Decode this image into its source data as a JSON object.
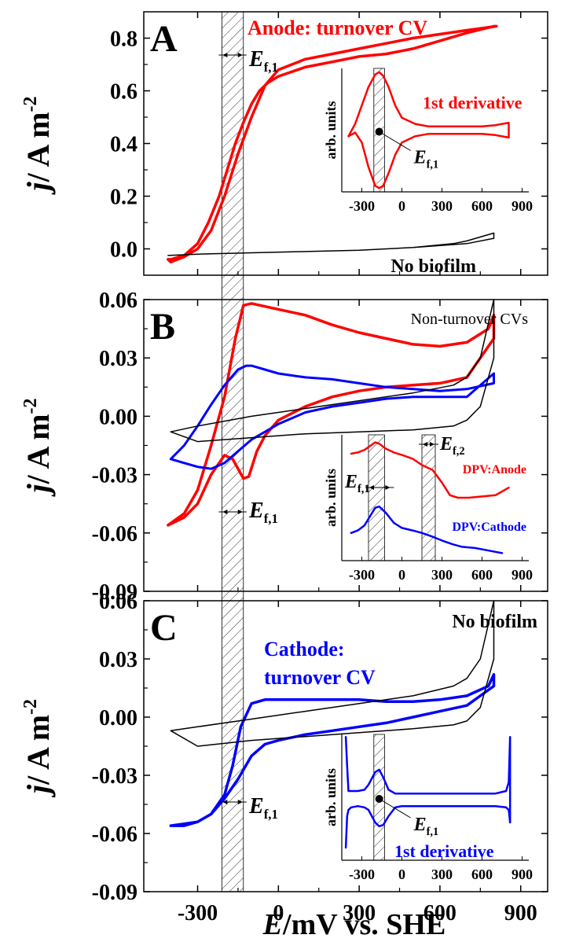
{
  "chart_data": {
    "type": "line",
    "xlabel_italic": "E",
    "xlabel_rest": "/mV vs. SHE",
    "ylabel_italic": "j",
    "ylabel_rest": "/ A m",
    "ylabel_sup": "-2",
    "xlim": [
      -500,
      1000
    ],
    "xticks": [
      "-300",
      "0",
      "300",
      "600",
      "900"
    ],
    "shaded_band": [
      -210,
      -130
    ],
    "panels": [
      {
        "letter": "A",
        "ylim": [
          -0.1,
          0.9
        ],
        "yticks": [
          "0.0",
          "0.2",
          "0.4",
          "0.6",
          "0.8"
        ],
        "annotations": [
          {
            "text": "Anode: turnover CV",
            "color": "#ff0000"
          },
          {
            "text": "No biofilm",
            "color": "#000000"
          }
        ],
        "ef_label": {
          "main": "E",
          "sub": "f,1"
        },
        "series": [
          {
            "color": "#ff0000",
            "width": 3.5,
            "x": [
              -410,
              -400,
              -350,
              -300,
              -260,
              -220,
              -190,
              -160,
              -130,
              -100,
              -70,
              -40,
              0,
              100,
              200,
              300,
              400,
              500,
              600,
              700,
              800,
              810,
              700,
              600,
              500,
              400,
              300,
              200,
              100,
              0,
              -50,
              -100,
              -150,
              -200,
              -250,
              -300,
              -350,
              -400,
              -410
            ],
            "y": [
              -0.04,
              -0.04,
              -0.025,
              0.02,
              0.1,
              0.2,
              0.3,
              0.4,
              0.48,
              0.55,
              0.6,
              0.63,
              0.655,
              0.69,
              0.71,
              0.73,
              0.74,
              0.76,
              0.79,
              0.82,
              0.845,
              0.845,
              0.83,
              0.815,
              0.8,
              0.78,
              0.76,
              0.74,
              0.72,
              0.68,
              0.62,
              0.5,
              0.36,
              0.2,
              0.07,
              0.0,
              -0.03,
              -0.05,
              -0.04
            ]
          },
          {
            "color": "#000000",
            "width": 1.5,
            "x": [
              -410,
              -300,
              -100,
              100,
              300,
              500,
              650,
              700,
              800,
              800,
              700,
              500,
              300,
              100,
              -100,
              -300,
              -410
            ],
            "y": [
              -0.025,
              -0.02,
              -0.015,
              -0.01,
              -0.005,
              0.005,
              0.02,
              0.03,
              0.06,
              0.04,
              0.02,
              0.005,
              -0.005,
              -0.01,
              -0.015,
              -0.02,
              -0.025
            ]
          }
        ],
        "inset": {
          "xlim": [
            -450,
            950
          ],
          "xticks": [
            "-300",
            "0",
            "300",
            "600",
            "900"
          ],
          "ylabel": "arb. units",
          "band": [
            -210,
            -130
          ],
          "label": {
            "text": "1st derivative",
            "color": "#ff0000"
          },
          "ef_label": {
            "main": "E",
            "sub": "f,1"
          },
          "dot_x": -170,
          "series": [
            {
              "color": "#ff0000",
              "width": 2.5,
              "x": [
                -400,
                -350,
                -300,
                -250,
                -200,
                -170,
                -140,
                -100,
                -50,
                0,
                100,
                200,
                400,
                600,
                700,
                800,
                800,
                700,
                600,
                400,
                200,
                100,
                0,
                -50,
                -100,
                -140,
                -170,
                -200,
                -250,
                -300,
                -350,
                -400
              ],
              "y": [
                0.45,
                0.55,
                0.7,
                0.85,
                0.95,
                0.97,
                0.94,
                0.85,
                0.7,
                0.6,
                0.55,
                0.53,
                0.53,
                0.53,
                0.54,
                0.56,
                0.44,
                0.46,
                0.47,
                0.47,
                0.47,
                0.45,
                0.4,
                0.3,
                0.15,
                0.05,
                0.03,
                0.05,
                0.2,
                0.4,
                0.48,
                0.45
              ]
            }
          ]
        }
      },
      {
        "letter": "B",
        "ylim": [
          -0.09,
          0.06
        ],
        "yticks": [
          "-0.09",
          "-0.06",
          "-0.03",
          "0.00",
          "0.03",
          "0.06"
        ],
        "annotations": [
          {
            "text": "Non-turnover CVs",
            "color": "#000000"
          }
        ],
        "ef_label": {
          "main": "E",
          "sub": "f,1"
        },
        "series": [
          {
            "color": "#ff0000",
            "width": 3.5,
            "x": [
              -410,
              -400,
              -350,
              -300,
              -250,
              -200,
              -160,
              -130,
              -100,
              0,
              100,
              200,
              300,
              400,
              500,
              600,
              700,
              780,
              800,
              800,
              700,
              600,
              500,
              400,
              300,
              200,
              100,
              0,
              -50,
              -80,
              -110,
              -130,
              -170,
              -200,
              -250,
              -300,
              -350,
              -410
            ],
            "y": [
              -0.056,
              -0.055,
              -0.05,
              -0.038,
              -0.015,
              0.01,
              0.04,
              0.057,
              0.058,
              0.055,
              0.052,
              0.047,
              0.043,
              0.04,
              0.037,
              0.036,
              0.038,
              0.045,
              0.052,
              0.04,
              0.02,
              0.017,
              0.016,
              0.015,
              0.013,
              0.01,
              0.005,
              -0.002,
              -0.01,
              -0.018,
              -0.031,
              -0.032,
              -0.022,
              -0.02,
              -0.03,
              -0.045,
              -0.052,
              -0.056
            ]
          },
          {
            "color": "#0000ff",
            "width": 3,
            "x": [
              -400,
              -350,
              -300,
              -250,
              -200,
              -150,
              -120,
              -100,
              -50,
              0,
              100,
              200,
              300,
              400,
              500,
              600,
              700,
              800,
              800,
              700,
              600,
              500,
              400,
              300,
              200,
              100,
              0,
              -100,
              -150,
              -200,
              -250,
              -300,
              -350,
              -400
            ],
            "y": [
              -0.022,
              -0.015,
              -0.005,
              0.006,
              0.016,
              0.024,
              0.026,
              0.026,
              0.024,
              0.022,
              0.02,
              0.019,
              0.017,
              0.015,
              0.014,
              0.013,
              0.014,
              0.017,
              0.022,
              0.01,
              0.01,
              0.01,
              0.009,
              0.007,
              0.005,
              0.002,
              -0.004,
              -0.012,
              -0.018,
              -0.024,
              -0.027,
              -0.026,
              -0.024,
              -0.022
            ]
          },
          {
            "color": "#000000",
            "width": 1.5,
            "x": [
              -400,
              -300,
              -100,
              100,
              300,
              500,
              650,
              700,
              750,
              800,
              800,
              750,
              700,
              650,
              500,
              300,
              100,
              -100,
              -300,
              -400
            ],
            "y": [
              -0.008,
              -0.005,
              0.0,
              0.004,
              0.008,
              0.012,
              0.016,
              0.02,
              0.03,
              0.06,
              0.03,
              0.005,
              -0.002,
              -0.005,
              -0.007,
              -0.008,
              -0.009,
              -0.011,
              -0.013,
              -0.008
            ]
          }
        ],
        "inset": {
          "xlim": [
            -450,
            950
          ],
          "xticks": [
            "-300",
            "0",
            "300",
            "600",
            "900"
          ],
          "ylabel": "arb. units",
          "bands": [
            [
              -250,
              -130
            ],
            [
              150,
              250
            ]
          ],
          "ef_label": {
            "main": "E",
            "sub": "f,1"
          },
          "ef2_label": {
            "main": "E",
            "sub": "f,2"
          },
          "series_labels": [
            {
              "text": "DPV:Anode",
              "color": "#ff0000"
            },
            {
              "text": "DPV:Cathode",
              "color": "#0000ff"
            }
          ],
          "series": [
            {
              "color": "#ff0000",
              "width": 2.5,
              "x": [
                -380,
                -330,
                -280,
                -240,
                -200,
                -170,
                -120,
                -60,
                0,
                80,
                150,
                230,
                300,
                360,
                420,
                500,
                600,
                700,
                800
              ],
              "y": [
                0.85,
                0.86,
                0.88,
                0.91,
                0.94,
                0.93,
                0.89,
                0.86,
                0.84,
                0.81,
                0.76,
                0.72,
                0.62,
                0.52,
                0.5,
                0.5,
                0.51,
                0.52,
                0.58
              ]
            },
            {
              "color": "#0000ff",
              "width": 2.5,
              "x": [
                -380,
                -330,
                -280,
                -240,
                -200,
                -170,
                -120,
                -60,
                0,
                80,
                150,
                230,
                300,
                380,
                450,
                550,
                650,
                750
              ],
              "y": [
                0.22,
                0.24,
                0.28,
                0.35,
                0.42,
                0.43,
                0.38,
                0.3,
                0.26,
                0.24,
                0.22,
                0.19,
                0.16,
                0.13,
                0.11,
                0.1,
                0.08,
                0.06
              ]
            }
          ]
        }
      },
      {
        "letter": "C",
        "ylim": [
          -0.09,
          0.06
        ],
        "yticks": [
          "-0.09",
          "-0.06",
          "-0.03",
          "0.00",
          "0.03",
          "0.06"
        ],
        "annotations": [
          {
            "text": "No biofilm",
            "color": "#000000"
          },
          {
            "text": "Cathode:",
            "color": "#0000ff"
          },
          {
            "text": "turnover CV",
            "color": "#0000ff"
          }
        ],
        "ef_label": {
          "main": "E",
          "sub": "f,1"
        },
        "series": [
          {
            "color": "#0000ff",
            "width": 3.5,
            "x": [
              -400,
              -350,
              -300,
              -250,
              -200,
              -170,
              -140,
              -100,
              -50,
              0,
              100,
              200,
              300,
              400,
              500,
              600,
              700,
              780,
              800,
              800,
              700,
              600,
              500,
              400,
              300,
              200,
              100,
              0,
              -50,
              -100,
              -150,
              -200,
              -250,
              -300,
              -350,
              -400
            ],
            "y": [
              -0.056,
              -0.056,
              -0.054,
              -0.05,
              -0.04,
              -0.025,
              -0.005,
              0.007,
              0.009,
              0.009,
              0.009,
              0.009,
              0.009,
              0.008,
              0.008,
              0.009,
              0.011,
              0.016,
              0.022,
              0.016,
              0.006,
              0.003,
              0.0,
              -0.003,
              -0.005,
              -0.007,
              -0.009,
              -0.012,
              -0.014,
              -0.02,
              -0.032,
              -0.042,
              -0.05,
              -0.054,
              -0.055,
              -0.056
            ]
          },
          {
            "color": "#000000",
            "width": 1.5,
            "x": [
              -400,
              -300,
              -100,
              100,
              300,
              500,
              650,
              700,
              750,
              800,
              800,
              750,
              700,
              650,
              500,
              300,
              100,
              -100,
              -300,
              -400
            ],
            "y": [
              -0.007,
              -0.005,
              -0.001,
              0.003,
              0.007,
              0.011,
              0.016,
              0.02,
              0.03,
              0.06,
              0.03,
              0.005,
              -0.002,
              -0.004,
              -0.006,
              -0.008,
              -0.01,
              -0.012,
              -0.015,
              -0.007
            ]
          }
        ],
        "inset": {
          "xlim": [
            -450,
            950
          ],
          "xticks": [
            "-300",
            "0",
            "300",
            "600",
            "900"
          ],
          "ylabel": "arb. units",
          "band": [
            -210,
            -130
          ],
          "label": {
            "text": "1st derivative",
            "color": "#0000ff"
          },
          "ef_label": {
            "main": "E",
            "sub": "f,1"
          },
          "dot_x": -170,
          "series": [
            {
              "color": "#0000ff",
              "width": 2.5,
              "x": [
                -420,
                -410,
                -400,
                -380,
                -330,
                -280,
                -250,
                -200,
                -170,
                -140,
                -100,
                -50,
                0,
                100,
                200,
                300,
                400,
                500,
                600,
                700,
                780,
                800,
                810,
                810,
                800,
                780,
                700,
                600,
                500,
                400,
                300,
                200,
                100,
                0,
                -50,
                -100,
                -140,
                -170,
                -200,
                -250,
                -280,
                -330,
                -380,
                -400,
                -410,
                -420
              ],
              "y": [
                0.98,
                0.75,
                0.55,
                0.55,
                0.55,
                0.56,
                0.6,
                0.7,
                0.72,
                0.66,
                0.56,
                0.53,
                0.53,
                0.53,
                0.53,
                0.53,
                0.53,
                0.53,
                0.53,
                0.53,
                0.55,
                0.62,
                0.98,
                0.3,
                0.4,
                0.42,
                0.43,
                0.43,
                0.43,
                0.43,
                0.43,
                0.43,
                0.43,
                0.43,
                0.42,
                0.35,
                0.28,
                0.27,
                0.3,
                0.4,
                0.42,
                0.43,
                0.42,
                0.4,
                0.35,
                0.1
              ]
            }
          ]
        }
      }
    ]
  }
}
